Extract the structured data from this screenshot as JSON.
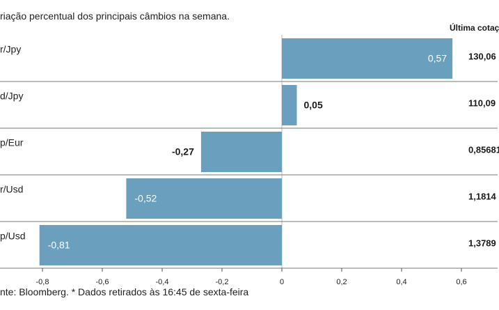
{
  "subtitle": "riação percentual dos principais câmbios na semana.",
  "quote_header": "Última cotaç",
  "source": "nte: Bloomberg.  * Dados retirados às 16:45 de sexta-feira",
  "colors": {
    "bar": "#6a9fbd",
    "grid": "#b8b8b8",
    "row_sep": "#777777"
  },
  "chart_data": {
    "type": "bar",
    "orientation": "horizontal",
    "categories": [
      "r/Jpy",
      "d/Jpy",
      "p/Eur",
      "r/Usd",
      "p/Usd"
    ],
    "values": [
      0.57,
      0.05,
      -0.27,
      -0.52,
      -0.81
    ],
    "value_labels": [
      "0,57",
      "0,05",
      "-0,27",
      "-0,52",
      "-0,81"
    ],
    "last_quotes": [
      "130,06",
      "110,09",
      "0,85681",
      "1,1814",
      "1,3789"
    ],
    "xlim": [
      -0.85,
      0.65
    ],
    "xticks": [
      -0.8,
      -0.6,
      -0.4,
      -0.2,
      0,
      0.2,
      0.4,
      0.6
    ],
    "xtick_labels": [
      "-0,8",
      "-0,6",
      "-0,4",
      "-0,2",
      "0",
      "0,2",
      "0,4",
      "0,6"
    ],
    "grid": true
  }
}
